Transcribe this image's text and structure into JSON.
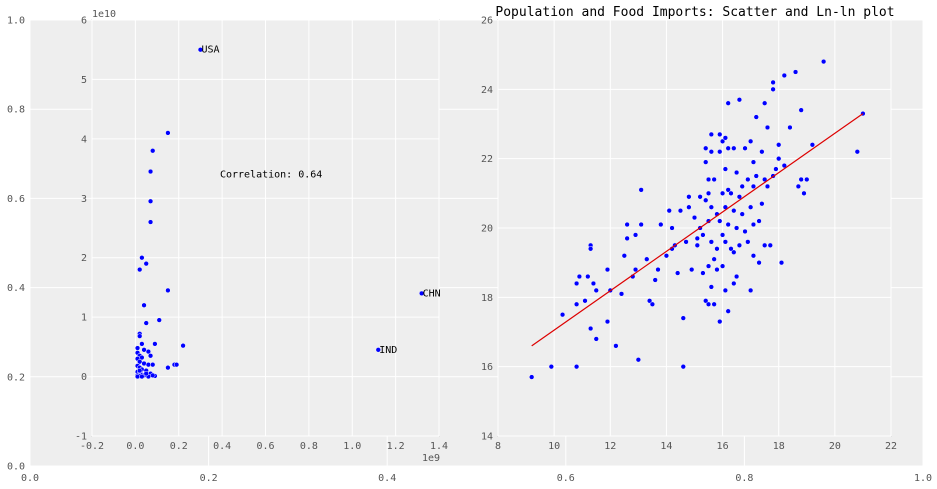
{
  "figure": {
    "title": "Population and Food Imports: Scatter and Ln-ln plot",
    "outer_axis": {
      "x_ticks": [
        "0.0",
        "0.2",
        "0.4",
        "0.6",
        "0.8",
        "1.0"
      ],
      "y_ticks": [
        "0.0",
        "0.2",
        "0.4",
        "0.6",
        "0.8",
        "1.0"
      ]
    }
  },
  "chart_data": [
    {
      "type": "scatter",
      "name": "raw",
      "x_offset_label": "1e9",
      "y_offset_label": "1e10",
      "xlim": [
        -0.2,
        1.4
      ],
      "ylim": [
        -1,
        6
      ],
      "x_ticks": [
        "-0.2",
        "0.0",
        "0.2",
        "0.4",
        "0.6",
        "0.8",
        "1.0",
        "1.2",
        "1.4"
      ],
      "y_ticks": [
        "-1",
        "0",
        "1",
        "2",
        "3",
        "4",
        "5",
        "6"
      ],
      "annotation": "Correlation: 0.64",
      "annotation_pos": [
        0.39,
        3.35
      ],
      "labeled_points": [
        {
          "label": "USA",
          "x": 0.3,
          "y": 5.5
        },
        {
          "label": "CHN",
          "x": 1.32,
          "y": 1.4
        },
        {
          "label": "IND",
          "x": 1.12,
          "y": 0.45
        }
      ],
      "points": [
        [
          0.15,
          4.1
        ],
        [
          0.08,
          3.8
        ],
        [
          0.07,
          3.45
        ],
        [
          0.07,
          2.95
        ],
        [
          0.07,
          2.6
        ],
        [
          0.03,
          2.0
        ],
        [
          0.05,
          1.9
        ],
        [
          0.02,
          1.8
        ],
        [
          0.15,
          1.45
        ],
        [
          0.04,
          1.2
        ],
        [
          0.11,
          0.95
        ],
        [
          0.05,
          0.9
        ],
        [
          0.02,
          0.72
        ],
        [
          0.02,
          0.68
        ],
        [
          0.09,
          0.55
        ],
        [
          0.22,
          0.52
        ],
        [
          0.03,
          0.55
        ],
        [
          0.01,
          0.48
        ],
        [
          0.04,
          0.45
        ],
        [
          0.06,
          0.42
        ],
        [
          0.01,
          0.4
        ],
        [
          0.02,
          0.35
        ],
        [
          0.07,
          0.35
        ],
        [
          0.03,
          0.32
        ],
        [
          0.01,
          0.3
        ],
        [
          0.02,
          0.25
        ],
        [
          0.04,
          0.22
        ],
        [
          0.06,
          0.2
        ],
        [
          0.08,
          0.2
        ],
        [
          0.01,
          0.18
        ],
        [
          0.02,
          0.15
        ],
        [
          0.03,
          0.12
        ],
        [
          0.05,
          0.1
        ],
        [
          0.01,
          0.08
        ],
        [
          0.07,
          0.05
        ],
        [
          0.02,
          0.05
        ],
        [
          0.03,
          0.03
        ],
        [
          0.01,
          0.02
        ],
        [
          0.04,
          0.02
        ],
        [
          0.09,
          0.01
        ],
        [
          0.15,
          0.15
        ],
        [
          0.18,
          0.2
        ],
        [
          0.19,
          0.2
        ],
        [
          0.02,
          0.01
        ],
        [
          0.01,
          0.0
        ],
        [
          0.03,
          0.0
        ],
        [
          0.06,
          0.0
        ],
        [
          0.08,
          0.02
        ],
        [
          0.05,
          0.05
        ],
        [
          0.02,
          0.1
        ]
      ]
    },
    {
      "type": "scatter",
      "name": "lnln",
      "xlim": [
        8,
        22
      ],
      "ylim": [
        14,
        26
      ],
      "x_ticks": [
        "8",
        "10",
        "12",
        "14",
        "16",
        "18",
        "20",
        "22"
      ],
      "y_ticks": [
        "14",
        "16",
        "18",
        "20",
        "22",
        "24",
        "26"
      ],
      "fit_line": [
        [
          9.2,
          16.6
        ],
        [
          21.0,
          23.3
        ]
      ],
      "points": [
        [
          9.2,
          15.7
        ],
        [
          9.9,
          16.0
        ],
        [
          10.3,
          17.5
        ],
        [
          10.8,
          16.0
        ],
        [
          10.8,
          17.8
        ],
        [
          10.8,
          18.4
        ],
        [
          10.9,
          18.6
        ],
        [
          11.1,
          17.9
        ],
        [
          11.2,
          18.6
        ],
        [
          11.3,
          19.5
        ],
        [
          11.3,
          19.4
        ],
        [
          11.3,
          17.1
        ],
        [
          11.4,
          18.4
        ],
        [
          11.5,
          18.2
        ],
        [
          11.5,
          16.8
        ],
        [
          11.9,
          17.3
        ],
        [
          11.9,
          18.8
        ],
        [
          12.0,
          18.2
        ],
        [
          12.2,
          16.6
        ],
        [
          12.4,
          18.1
        ],
        [
          12.5,
          19.2
        ],
        [
          12.6,
          19.7
        ],
        [
          12.6,
          20.1
        ],
        [
          12.8,
          18.6
        ],
        [
          12.9,
          18.8
        ],
        [
          12.9,
          19.8
        ],
        [
          13.0,
          16.2
        ],
        [
          13.1,
          20.1
        ],
        [
          13.1,
          21.1
        ],
        [
          13.3,
          19.1
        ],
        [
          13.4,
          17.9
        ],
        [
          13.5,
          17.8
        ],
        [
          13.6,
          18.5
        ],
        [
          13.7,
          18.8
        ],
        [
          13.8,
          20.1
        ],
        [
          14.0,
          19.2
        ],
        [
          14.1,
          20.5
        ],
        [
          14.2,
          19.4
        ],
        [
          14.2,
          20.0
        ],
        [
          14.3,
          19.5
        ],
        [
          14.4,
          18.7
        ],
        [
          14.5,
          20.5
        ],
        [
          14.6,
          16.0
        ],
        [
          14.6,
          17.4
        ],
        [
          14.7,
          19.6
        ],
        [
          14.8,
          20.6
        ],
        [
          14.8,
          20.9
        ],
        [
          14.9,
          18.8
        ],
        [
          15.0,
          20.3
        ],
        [
          15.1,
          19.5
        ],
        [
          15.1,
          19.7
        ],
        [
          15.2,
          20.0
        ],
        [
          15.2,
          20.9
        ],
        [
          15.3,
          18.7
        ],
        [
          15.3,
          19.8
        ],
        [
          15.4,
          22.3
        ],
        [
          15.4,
          21.9
        ],
        [
          15.4,
          20.8
        ],
        [
          15.4,
          17.9
        ],
        [
          15.5,
          21.4
        ],
        [
          15.5,
          21.0
        ],
        [
          15.5,
          20.2
        ],
        [
          15.5,
          18.9
        ],
        [
          15.5,
          17.8
        ],
        [
          15.6,
          22.7
        ],
        [
          15.6,
          22.2
        ],
        [
          15.6,
          20.6
        ],
        [
          15.6,
          19.6
        ],
        [
          15.6,
          18.3
        ],
        [
          15.7,
          21.4
        ],
        [
          15.7,
          19.1
        ],
        [
          15.7,
          17.8
        ],
        [
          15.8,
          20.4
        ],
        [
          15.8,
          19.4
        ],
        [
          15.8,
          18.8
        ],
        [
          15.9,
          22.7
        ],
        [
          15.9,
          22.2
        ],
        [
          15.9,
          20.2
        ],
        [
          15.9,
          17.3
        ],
        [
          16.0,
          22.5
        ],
        [
          16.0,
          21.0
        ],
        [
          16.0,
          19.8
        ],
        [
          16.0,
          18.9
        ],
        [
          16.1,
          22.6
        ],
        [
          16.1,
          21.7
        ],
        [
          16.1,
          20.6
        ],
        [
          16.1,
          19.6
        ],
        [
          16.1,
          18.2
        ],
        [
          16.2,
          23.6
        ],
        [
          16.2,
          22.3
        ],
        [
          16.2,
          21.1
        ],
        [
          16.2,
          20.1
        ],
        [
          16.2,
          17.6
        ],
        [
          16.3,
          21.0
        ],
        [
          16.3,
          19.4
        ],
        [
          16.4,
          22.3
        ],
        [
          16.4,
          20.5
        ],
        [
          16.4,
          19.3
        ],
        [
          16.4,
          18.4
        ],
        [
          16.5,
          21.6
        ],
        [
          16.5,
          20.0
        ],
        [
          16.5,
          18.6
        ],
        [
          16.6,
          23.7
        ],
        [
          16.6,
          20.9
        ],
        [
          16.6,
          19.5
        ],
        [
          16.7,
          21.2
        ],
        [
          16.7,
          20.4
        ],
        [
          16.8,
          22.3
        ],
        [
          16.8,
          19.9
        ],
        [
          16.9,
          21.4
        ],
        [
          16.9,
          19.6
        ],
        [
          17.0,
          22.5
        ],
        [
          17.0,
          20.6
        ],
        [
          17.0,
          18.2
        ],
        [
          17.1,
          21.9
        ],
        [
          17.1,
          21.2
        ],
        [
          17.1,
          20.1
        ],
        [
          17.1,
          19.2
        ],
        [
          17.2,
          23.2
        ],
        [
          17.2,
          21.5
        ],
        [
          17.3,
          20.2
        ],
        [
          17.3,
          19.0
        ],
        [
          17.4,
          22.2
        ],
        [
          17.4,
          20.7
        ],
        [
          17.5,
          23.6
        ],
        [
          17.5,
          21.4
        ],
        [
          17.5,
          19.5
        ],
        [
          17.6,
          22.9
        ],
        [
          17.6,
          21.2
        ],
        [
          17.7,
          19.5
        ],
        [
          17.8,
          24.2
        ],
        [
          17.8,
          24.0
        ],
        [
          17.8,
          21.5
        ],
        [
          17.9,
          21.7
        ],
        [
          18.0,
          22.4
        ],
        [
          18.0,
          22.0
        ],
        [
          18.1,
          19.0
        ],
        [
          18.2,
          24.4
        ],
        [
          18.2,
          21.8
        ],
        [
          18.4,
          22.9
        ],
        [
          18.6,
          24.5
        ],
        [
          18.7,
          21.2
        ],
        [
          18.8,
          21.4
        ],
        [
          18.8,
          23.4
        ],
        [
          18.9,
          21.0
        ],
        [
          19.0,
          21.4
        ],
        [
          19.2,
          22.4
        ],
        [
          19.6,
          24.8
        ],
        [
          20.8,
          22.2
        ],
        [
          21.0,
          23.3
        ]
      ]
    }
  ]
}
